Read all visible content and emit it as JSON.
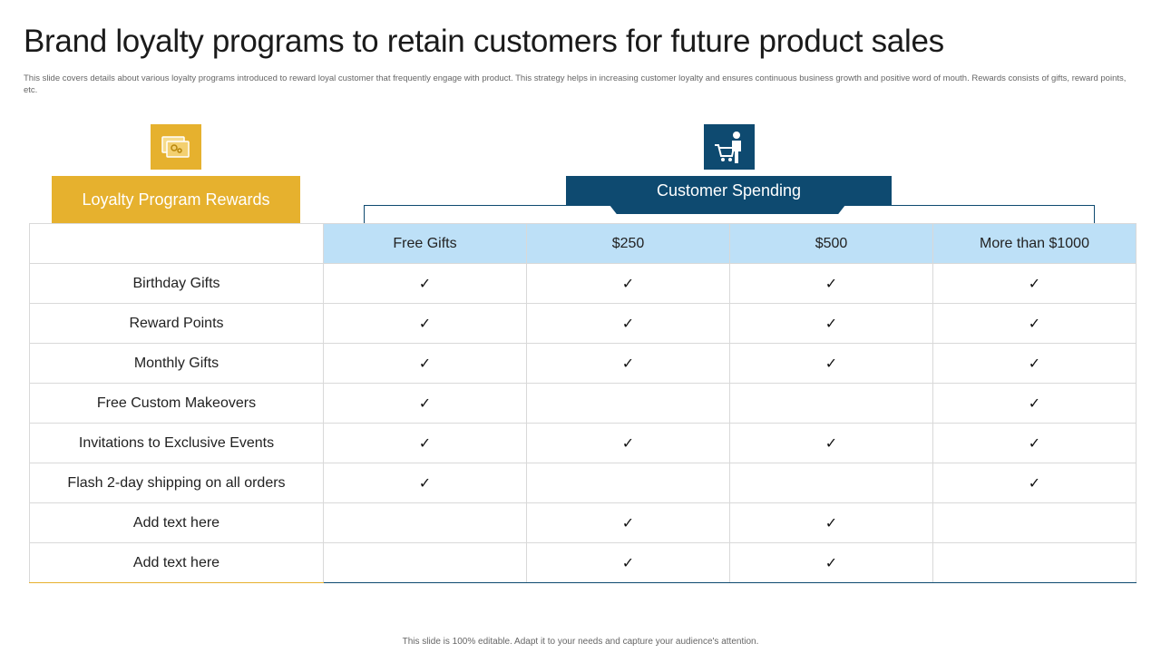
{
  "title": "Brand loyalty programs to retain customers for future product sales",
  "subtitle": "This slide covers details about various loyalty programs introduced to reward loyal customer that frequently engage with product. This strategy helps in increasing customer loyalty and ensures continuous business growth and positive word of mouth. Rewards consists of gifts, reward points, etc.",
  "icons": {
    "rewards": "gift-card-icon",
    "spending": "shopping-cart-person-icon"
  },
  "colors": {
    "gold": "#e6b12e",
    "navy": "#0e4a70",
    "header_bg": "#bde0f7"
  },
  "left_banner": {
    "label": "Loyalty Program Rewards"
  },
  "right_banner": {
    "label": "Customer Spending"
  },
  "check_symbol": "✓",
  "table": {
    "columns": [
      "Free Gifts",
      "$250",
      "$500",
      "More than $1000"
    ],
    "rows": [
      {
        "label": "Birthday Gifts",
        "checks": [
          true,
          true,
          true,
          true
        ]
      },
      {
        "label": "Reward Points",
        "checks": [
          true,
          true,
          true,
          true
        ]
      },
      {
        "label": "Monthly Gifts",
        "checks": [
          true,
          true,
          true,
          true
        ]
      },
      {
        "label": "Free Custom Makeovers",
        "checks": [
          true,
          false,
          false,
          true
        ]
      },
      {
        "label": "Invitations to Exclusive Events",
        "checks": [
          true,
          true,
          true,
          true
        ]
      },
      {
        "label": "Flash 2-day shipping on all orders",
        "checks": [
          true,
          false,
          false,
          true
        ]
      },
      {
        "label": "Add text here",
        "checks": [
          false,
          true,
          true,
          false
        ]
      },
      {
        "label": "Add text here",
        "checks": [
          false,
          true,
          true,
          false
        ]
      }
    ]
  },
  "footer": "This slide is 100% editable. Adapt it to your needs and capture your audience's attention."
}
